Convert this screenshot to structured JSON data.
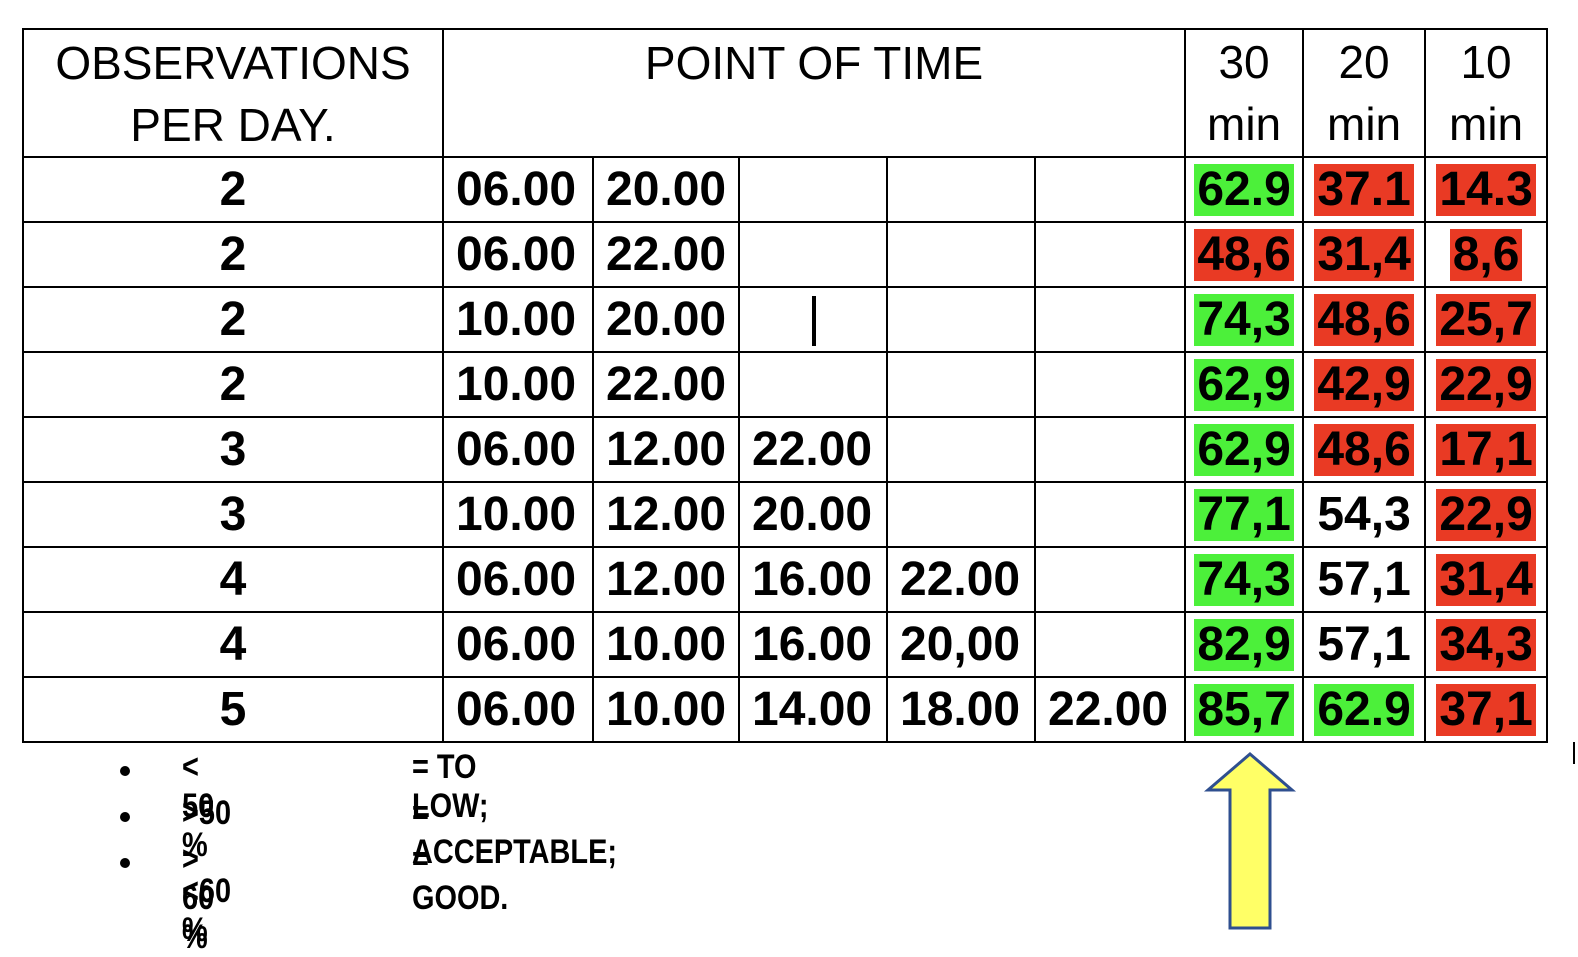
{
  "header": {
    "observations_line1": "OBSERVATIONS",
    "observations_line2": "PER DAY.",
    "point_of_time": "POINT OF TIME",
    "col30_top": "30",
    "col30_bottom": "min",
    "col20_top": "20",
    "col20_bottom": "min",
    "col10_top": "10",
    "col10_bottom": "min"
  },
  "rows": [
    {
      "obs": "2",
      "times": [
        "06.00",
        "20.00",
        "",
        "",
        ""
      ],
      "v30": "62.9",
      "v20": "37.1",
      "v10": "14.3",
      "c30": "green",
      "c20": "red",
      "c10": "red"
    },
    {
      "obs": "2",
      "times": [
        "06.00",
        "22.00",
        "",
        "",
        ""
      ],
      "v30": "48,6",
      "v20": "31,4",
      "v10": "8,6",
      "c30": "red",
      "c20": "red",
      "c10": "red"
    },
    {
      "obs": "2",
      "times": [
        "10.00",
        "20.00",
        "",
        "",
        ""
      ],
      "v30": "74,3",
      "v20": "48,6",
      "v10": "25,7",
      "c30": "green",
      "c20": "red",
      "c10": "red"
    },
    {
      "obs": "2",
      "times": [
        "10.00",
        "22.00",
        "",
        "",
        ""
      ],
      "v30": "62,9",
      "v20": "42,9",
      "v10": "22,9",
      "c30": "green",
      "c20": "red",
      "c10": "red"
    },
    {
      "obs": "3",
      "times": [
        "06.00",
        "12.00",
        "22.00",
        "",
        ""
      ],
      "v30": "62,9",
      "v20": "48,6",
      "v10": "17,1",
      "c30": "green",
      "c20": "red",
      "c10": "red"
    },
    {
      "obs": "3",
      "times": [
        "10.00",
        "12.00",
        "20.00",
        "",
        ""
      ],
      "v30": "77,1",
      "v20": "54,3",
      "v10": "22,9",
      "c30": "green",
      "c20": "none",
      "c10": "red"
    },
    {
      "obs": "4",
      "times": [
        "06.00",
        "12.00",
        "16.00",
        "22.00",
        ""
      ],
      "v30": "74,3",
      "v20": "57,1",
      "v10": "31,4",
      "c30": "green",
      "c20": "none",
      "c10": "red"
    },
    {
      "obs": "4",
      "times": [
        "06.00",
        "10.00",
        "16.00",
        "20,00",
        ""
      ],
      "v30": "82,9",
      "v20": "57,1",
      "v10": "34,3",
      "c30": "green",
      "c20": "none",
      "c10": "red"
    },
    {
      "obs": "5",
      "times": [
        "06.00",
        "10.00",
        "14.00",
        "18.00",
        "22.00"
      ],
      "v30": "85,7",
      "v20": "62.9",
      "v10": "37,1",
      "c30": "green",
      "c20": "green",
      "c10": "red"
    }
  ],
  "legend": [
    {
      "range": "< 50 %",
      "label": "= TO LOW;"
    },
    {
      "range": ">50 - <60 %",
      "label": "= ACCEPTABLE;"
    },
    {
      "range": "> 60 %",
      "label": "= GOOD."
    }
  ],
  "colors": {
    "good": "#4cf03a",
    "low": "#e93a24",
    "arrow_fill": "#ffff66",
    "arrow_stroke": "#2f4f8f"
  },
  "icons": {
    "arrow": "up-arrow-icon",
    "bullet": "bullet-icon"
  }
}
